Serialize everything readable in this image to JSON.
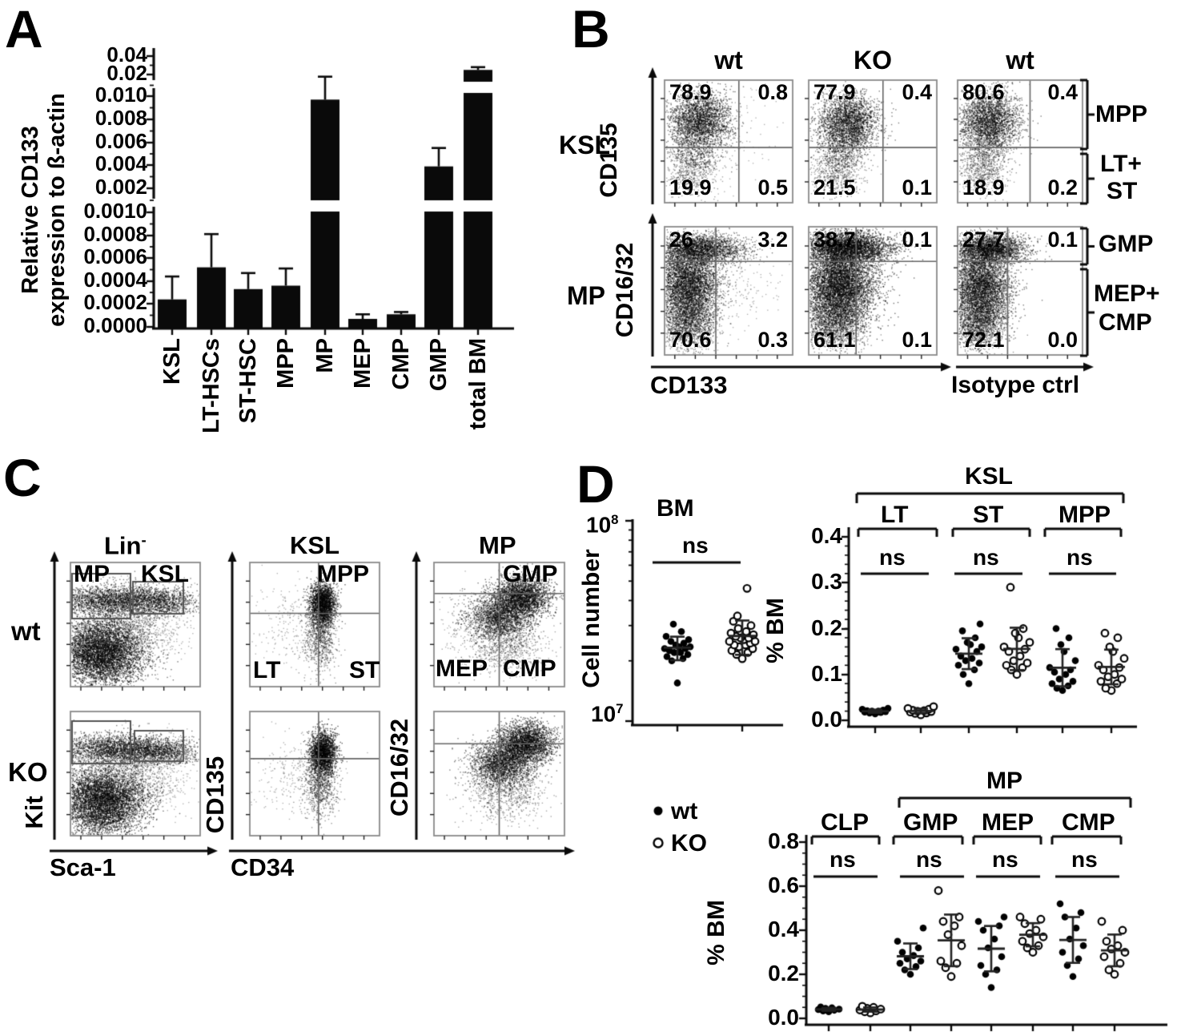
{
  "panels": {
    "A": {
      "letter": "A",
      "ylabel_line1": "Relative CD133",
      "ylabel_line2": "expression to ß-actin",
      "yticks_top": [
        "0.04",
        "0.02"
      ],
      "yticks_mid": [
        "0.010",
        "0.008",
        "0.006",
        "0.004",
        "0.002"
      ],
      "yticks_bottom": [
        "0.0010",
        "0.0008",
        "0.0006",
        "0.0004",
        "0.0002",
        "0.0000"
      ],
      "categories": [
        "KSL",
        "LT-HSCs",
        "ST-HSC",
        "MPP",
        "MP",
        "MEP",
        "CMP",
        "GMP",
        "total BM"
      ]
    },
    "B": {
      "letter": "B",
      "col_headers": [
        "wt",
        "KO",
        "wt"
      ],
      "xlabel": "CD133",
      "xlabel_right": "Isotype ctrl",
      "rows": [
        {
          "label": "KSL",
          "yaxis": "CD135",
          "right_labels": [
            "MPP",
            "LT+",
            "ST"
          ],
          "plots": [
            {
              "tl": "78.9",
              "tr": "0.8",
              "bl": "19.9",
              "br": "0.5"
            },
            {
              "tl": "77.9",
              "tr": "0.4",
              "bl": "21.5",
              "br": "0.1"
            },
            {
              "tl": "80.6",
              "tr": "0.4",
              "bl": "18.9",
              "br": "0.2"
            }
          ]
        },
        {
          "label": "MP",
          "yaxis": "CD16/32",
          "right_labels": [
            "GMP",
            "MEP+",
            "CMP"
          ],
          "plots": [
            {
              "tl": "26",
              "tr": "3.2",
              "bl": "70.6",
              "br": "0.3"
            },
            {
              "tl": "38.7",
              "tr": "0.1",
              "bl": "61.1",
              "br": "0.1"
            },
            {
              "tl": "27.7",
              "tr": "0.1",
              "bl": "72.1",
              "br": "0.0"
            }
          ]
        }
      ]
    },
    "C": {
      "letter": "C",
      "lin_base": "Lin",
      "lin_sup": "-",
      "col2": "KSL",
      "col3": "MP",
      "row_labels": [
        "wt",
        "KO"
      ],
      "gates": {
        "mp": "MP",
        "ksl": "KSL",
        "mpp": "MPP",
        "lt": "LT",
        "st": "ST",
        "gmp": "GMP",
        "mep": "MEP",
        "cmp": "CMP"
      },
      "axes": {
        "y1": "Kit",
        "x1": "Sca-1",
        "y2": "CD135",
        "x2": "CD34",
        "y3": "CD16/32"
      }
    },
    "D": {
      "letter": "D",
      "legend": {
        "wt": "wt",
        "ko": "KO"
      },
      "bm": {
        "title": "BM",
        "ylabel": "Cell number",
        "y_top_base": "10",
        "y_top_exp": "8",
        "y_bot_base": "10",
        "y_bot_exp": "7",
        "sig": "ns"
      },
      "ksl": {
        "bracket": "KSL",
        "groups": [
          "LT",
          "ST",
          "MPP"
        ],
        "sig": [
          "ns",
          "ns",
          "ns"
        ],
        "ylabel": "% BM",
        "yticks": [
          "0.4",
          "0.3",
          "0.2",
          "0.1",
          "0.0"
        ]
      },
      "mp": {
        "bracket": "MP",
        "groups": [
          "CLP",
          "GMP",
          "MEP",
          "CMP"
        ],
        "sig": [
          "ns",
          "ns",
          "ns",
          "ns"
        ],
        "ylabel": "% BM",
        "yticks": [
          "0.8",
          "0.6",
          "0.4",
          "0.2",
          "0.0"
        ]
      }
    }
  },
  "chart_data": [
    {
      "id": "A",
      "type": "bar",
      "title": "Relative CD133 expression",
      "ylabel": "Relative CD133 expression to ß-actin",
      "categories": [
        "KSL",
        "LT-HSCs",
        "ST-HSC",
        "MPP",
        "MP",
        "MEP",
        "CMP",
        "GMP",
        "total BM"
      ],
      "values": [
        0.00024,
        0.00052,
        0.00033,
        0.00036,
        0.0097,
        7e-05,
        0.00011,
        0.0039,
        0.025
      ],
      "error_upper": [
        0.00044,
        0.00081,
        0.00047,
        0.00051,
        0.019,
        0.00011,
        0.00013,
        0.0055,
        0.028
      ],
      "ylim": [
        0,
        0.04
      ],
      "axis_breaks": [
        [
          0.001,
          0.002
        ],
        [
          0.01,
          0.02
        ]
      ]
    },
    {
      "id": "D-BM",
      "type": "scatter",
      "title": "BM",
      "ylabel": "Cell number",
      "yscale": "log",
      "ylim": [
        10000000,
        100000000
      ],
      "unit": "1e7 cells",
      "sig": "ns",
      "groups": [
        {
          "name": "wt",
          "marker": "filled",
          "values": [
            1.55,
            2.0,
            2.05,
            2.1,
            2.15,
            2.2,
            2.2,
            2.25,
            2.3,
            2.3,
            2.35,
            2.35,
            2.4,
            2.45,
            2.5,
            2.55,
            2.65,
            2.8,
            3.05
          ]
        },
        {
          "name": "KO",
          "marker": "open",
          "values": [
            2.05,
            2.15,
            2.2,
            2.25,
            2.3,
            2.35,
            2.4,
            2.4,
            2.45,
            2.5,
            2.5,
            2.55,
            2.6,
            2.6,
            2.65,
            2.7,
            2.75,
            2.8,
            2.9,
            3.0,
            3.15,
            3.35,
            4.6
          ]
        }
      ]
    },
    {
      "id": "D-KSL",
      "type": "scatter",
      "bracket": "KSL",
      "ylabel": "% BM",
      "ylim": [
        0,
        0.4
      ],
      "categories": [
        "LT",
        "ST",
        "MPP"
      ],
      "sig": [
        "ns",
        "ns",
        "ns"
      ],
      "series": [
        {
          "cat": "LT",
          "wt": [
            0.014,
            0.016,
            0.017,
            0.018,
            0.019,
            0.02,
            0.02,
            0.021,
            0.022,
            0.024,
            0.026
          ],
          "ko": [
            0.012,
            0.015,
            0.016,
            0.018,
            0.019,
            0.02,
            0.021,
            0.022,
            0.024,
            0.026,
            0.03
          ]
        },
        {
          "cat": "ST",
          "wt": [
            0.08,
            0.1,
            0.11,
            0.12,
            0.125,
            0.13,
            0.135,
            0.14,
            0.15,
            0.155,
            0.16,
            0.165,
            0.17,
            0.18,
            0.195,
            0.21
          ],
          "ko": [
            0.1,
            0.11,
            0.115,
            0.12,
            0.125,
            0.13,
            0.14,
            0.15,
            0.155,
            0.16,
            0.17,
            0.18,
            0.19,
            0.2,
            0.29
          ]
        },
        {
          "cat": "MPP",
          "wt": [
            0.065,
            0.07,
            0.075,
            0.08,
            0.085,
            0.09,
            0.1,
            0.105,
            0.11,
            0.115,
            0.13,
            0.15,
            0.165,
            0.18,
            0.2
          ],
          "ko": [
            0.065,
            0.07,
            0.08,
            0.085,
            0.09,
            0.095,
            0.1,
            0.11,
            0.115,
            0.12,
            0.135,
            0.15,
            0.16,
            0.18,
            0.19
          ]
        }
      ]
    },
    {
      "id": "D-MP",
      "type": "scatter",
      "bracket": "MP",
      "bracket_over": [
        "GMP",
        "MEP",
        "CMP"
      ],
      "ylabel": "% BM",
      "ylim": [
        0,
        0.8
      ],
      "categories": [
        "CLP",
        "GMP",
        "MEP",
        "CMP"
      ],
      "sig": [
        "ns",
        "ns",
        "ns",
        "ns"
      ],
      "series": [
        {
          "cat": "CLP",
          "wt": [
            0.03,
            0.034,
            0.037,
            0.04,
            0.042,
            0.045,
            0.048,
            0.052
          ],
          "ko": [
            0.025,
            0.03,
            0.034,
            0.038,
            0.042,
            0.046,
            0.05,
            0.055
          ]
        },
        {
          "cat": "GMP",
          "wt": [
            0.2,
            0.22,
            0.235,
            0.25,
            0.26,
            0.27,
            0.285,
            0.3,
            0.32,
            0.35,
            0.41
          ],
          "ko": [
            0.19,
            0.23,
            0.25,
            0.26,
            0.33,
            0.38,
            0.42,
            0.44,
            0.46,
            0.58
          ]
        },
        {
          "cat": "MEP",
          "wt": [
            0.14,
            0.2,
            0.22,
            0.24,
            0.28,
            0.32,
            0.36,
            0.4,
            0.42,
            0.44,
            0.46
          ],
          "ko": [
            0.3,
            0.32,
            0.33,
            0.35,
            0.37,
            0.385,
            0.4,
            0.43,
            0.45,
            0.46
          ]
        },
        {
          "cat": "CMP",
          "wt": [
            0.19,
            0.24,
            0.27,
            0.3,
            0.33,
            0.36,
            0.41,
            0.46,
            0.48,
            0.52
          ],
          "ko": [
            0.2,
            0.22,
            0.25,
            0.28,
            0.3,
            0.315,
            0.33,
            0.35,
            0.4,
            0.44
          ]
        }
      ]
    }
  ]
}
